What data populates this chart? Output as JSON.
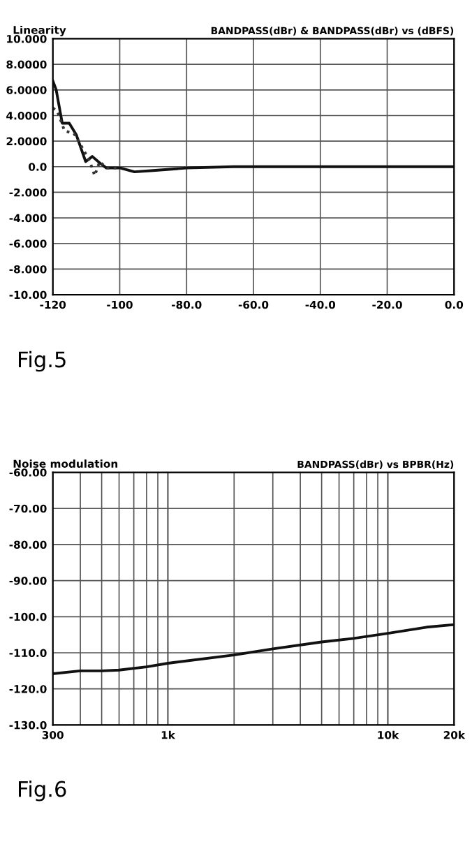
{
  "chart_data": [
    {
      "type": "line",
      "title": "Linearity",
      "subtitle": "BANDPASS(dBr) & BANDPASS(dBr) vs (dBFS)",
      "annotations": [
        "Fig.5"
      ],
      "series": [
        {
          "color": "#111111",
          "line_style": "solid",
          "x": [
            -120,
            -119,
            -117.2,
            -115.1,
            -113,
            -110.2,
            -108.2,
            -106,
            -104,
            -99.8,
            -95.6,
            -90,
            -80,
            -66,
            -40,
            -20,
            0
          ],
          "values": [
            6.7,
            6.0,
            3.4,
            3.4,
            2.5,
            0.4,
            0.8,
            0.3,
            -0.1,
            -0.1,
            -0.4,
            -0.3,
            -0.1,
            0,
            0,
            0,
            0
          ]
        },
        {
          "color": "#333333",
          "line_style": "dotted",
          "x": [
            -120,
            -118.6,
            -116.5,
            -113.7,
            -111,
            -108.9,
            -107.5,
            -106,
            -104,
            -100
          ],
          "values": [
            4.6,
            4.3,
            2.8,
            2.6,
            1.4,
            0.4,
            -0.7,
            0.4,
            -0.1,
            -0.1
          ]
        }
      ],
      "xlim": [
        -120,
        0
      ],
      "xticks": [
        -120,
        -100,
        {
          "value": -80,
          "label": "-80.0"
        },
        {
          "value": -60,
          "label": "-60.0"
        },
        {
          "value": -40,
          "label": "-40.0"
        },
        {
          "value": -20,
          "label": "-20.0"
        },
        {
          "value": 0,
          "label": "0.0"
        }
      ],
      "ylim": [
        -10,
        10
      ],
      "yticks": [
        {
          "value": 10,
          "label": "10.000"
        },
        {
          "value": 8,
          "label": "8.0000"
        },
        {
          "value": 6,
          "label": "6.0000"
        },
        {
          "value": 4,
          "label": "4.0000"
        },
        {
          "value": 2,
          "label": "2.0000"
        },
        {
          "value": 0,
          "label": "0.0"
        },
        {
          "value": -2,
          "label": "-2.000"
        },
        {
          "value": -4,
          "label": "-4.000"
        },
        {
          "value": -6,
          "label": "-6.000"
        },
        {
          "value": -8,
          "label": "-8.000"
        },
        {
          "value": -10,
          "label": "-10.00"
        }
      ],
      "grid": true
    },
    {
      "type": "line",
      "title": "Noise modulation",
      "subtitle": "BANDPASS(dBr) vs BPBR(Hz)",
      "annotations": [
        "Fig.6"
      ],
      "log": "x",
      "series": [
        {
          "color": "#111111",
          "line_style": "solid",
          "x": [
            300,
            400,
            500,
            600,
            800,
            1000,
            2000,
            3000,
            5000,
            7000,
            10000,
            15000,
            20000
          ],
          "values": [
            -115.8,
            -115,
            -115,
            -114.8,
            -113.9,
            -112.9,
            -110.6,
            -108.9,
            -107,
            -106,
            -104.6,
            -102.9,
            -102.2
          ]
        }
      ],
      "xlim": [
        300,
        20000
      ],
      "xticks": [
        300,
        {
          "value": 1000,
          "label": "1k"
        },
        {
          "value": 10000,
          "label": "10k"
        },
        {
          "value": 20000,
          "label": "20k"
        }
      ],
      "ylim": [
        -130,
        -60
      ],
      "yticks": [
        {
          "value": -60,
          "label": "-60.00"
        },
        {
          "value": -70,
          "label": "-70.00"
        },
        {
          "value": -80,
          "label": "-80.00"
        },
        {
          "value": -90,
          "label": "-90.00"
        },
        {
          "value": -100,
          "label": "-100.0"
        },
        {
          "value": -110,
          "label": "-110.0"
        },
        {
          "value": -120,
          "label": "-120.0"
        },
        {
          "value": -130,
          "label": "-130.0"
        }
      ],
      "grid": true
    }
  ]
}
